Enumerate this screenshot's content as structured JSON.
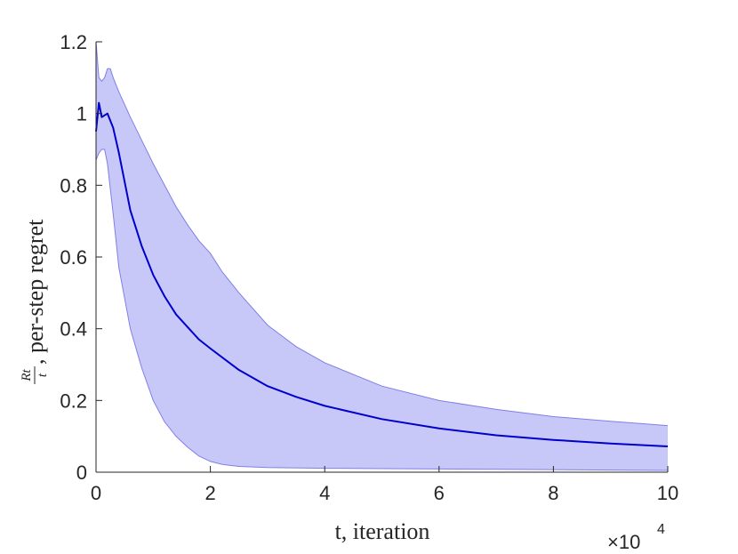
{
  "chart_data": {
    "type": "area",
    "xlabel": "t, iteration",
    "ylabel_fraction": {
      "numerator": "Rt",
      "denominator": "t"
    },
    "ylabel_text": ", per-step regret",
    "x_exponent": {
      "base": "×10",
      "power": "4"
    },
    "xlim": [
      0,
      100000
    ],
    "ylim": [
      0,
      1.2
    ],
    "x_ticks": [
      0,
      20000,
      40000,
      60000,
      80000,
      100000
    ],
    "x_tick_labels": [
      "0",
      "2",
      "4",
      "6",
      "8",
      "10"
    ],
    "y_ticks": [
      0,
      0.2,
      0.4,
      0.6,
      0.8,
      1.0,
      1.2
    ],
    "y_tick_labels": [
      "0",
      "0.2",
      "0.4",
      "0.6",
      "0.8",
      "1",
      "1.2"
    ],
    "grid": false,
    "colors": {
      "line": "#0000cc",
      "band": "#c8c8f8",
      "band_edge": "#7f7fe6",
      "axis": "#262626"
    },
    "series": [
      {
        "role": "mean",
        "x": [
          0,
          500,
          1000,
          2000,
          3000,
          4000,
          6000,
          8000,
          10000,
          12000,
          14000,
          16000,
          18000,
          20000,
          25000,
          30000,
          35000,
          40000,
          50000,
          60000,
          70000,
          80000,
          90000,
          100000
        ],
        "y": [
          0.95,
          1.03,
          0.99,
          1.0,
          0.96,
          0.89,
          0.73,
          0.63,
          0.55,
          0.49,
          0.44,
          0.405,
          0.37,
          0.345,
          0.285,
          0.24,
          0.21,
          0.185,
          0.148,
          0.122,
          0.103,
          0.09,
          0.08,
          0.072
        ]
      },
      {
        "role": "upper",
        "x": [
          0,
          500,
          1000,
          1500,
          2000,
          2500,
          3000,
          4000,
          6000,
          8000,
          10000,
          12000,
          14000,
          16000,
          18000,
          20000,
          22000,
          25000,
          30000,
          35000,
          40000,
          50000,
          60000,
          70000,
          80000,
          90000,
          100000
        ],
        "y": [
          1.2,
          1.1,
          1.09,
          1.1,
          1.125,
          1.125,
          1.1,
          1.06,
          0.99,
          0.925,
          0.86,
          0.8,
          0.74,
          0.69,
          0.645,
          0.61,
          0.56,
          0.5,
          0.41,
          0.35,
          0.305,
          0.24,
          0.2,
          0.175,
          0.155,
          0.142,
          0.13
        ]
      },
      {
        "role": "lower",
        "x": [
          0,
          500,
          1000,
          1500,
          2000,
          3000,
          4000,
          6000,
          8000,
          10000,
          12000,
          14000,
          16000,
          18000,
          20000,
          22000,
          25000,
          30000,
          40000,
          50000,
          60000,
          70000,
          80000,
          90000,
          100000
        ],
        "y": [
          0.87,
          0.89,
          0.9,
          0.9,
          0.86,
          0.72,
          0.57,
          0.4,
          0.29,
          0.2,
          0.14,
          0.1,
          0.07,
          0.045,
          0.03,
          0.022,
          0.016,
          0.013,
          0.011,
          0.01,
          0.009,
          0.008,
          0.007,
          0.006,
          0.005
        ]
      }
    ]
  }
}
